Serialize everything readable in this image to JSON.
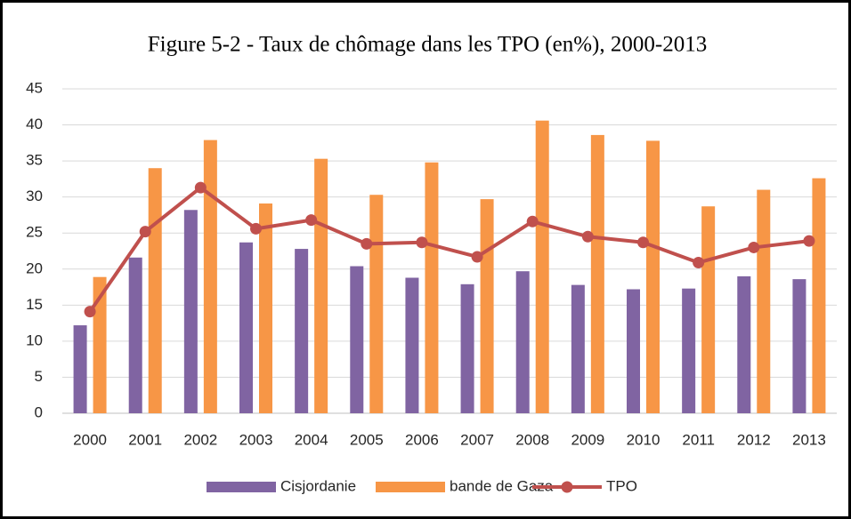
{
  "chart_data": {
    "type": "bar",
    "title": "Figure 5-2 - Taux de chômage dans les TPO (en%), 2000-2013",
    "categories": [
      "2000",
      "2001",
      "2002",
      "2003",
      "2004",
      "2005",
      "2006",
      "2007",
      "2008",
      "2009",
      "2010",
      "2011",
      "2012",
      "2013"
    ],
    "series": [
      {
        "name": "Cisjordanie",
        "type": "bar",
        "color": "#8064a2",
        "values": [
          12.2,
          21.6,
          28.2,
          23.7,
          22.8,
          20.4,
          18.8,
          17.9,
          19.7,
          17.8,
          17.2,
          17.3,
          19.0,
          18.6
        ]
      },
      {
        "name": "bande de Gaza",
        "type": "bar",
        "color": "#f79646",
        "values": [
          18.9,
          34.0,
          37.9,
          29.1,
          35.3,
          30.3,
          34.8,
          29.7,
          40.6,
          38.6,
          37.8,
          28.7,
          31.0,
          32.6
        ]
      },
      {
        "name": "TPO",
        "type": "line",
        "color": "#c0504d",
        "values": [
          14.1,
          25.2,
          31.3,
          25.6,
          26.8,
          23.5,
          23.7,
          21.7,
          26.6,
          24.5,
          23.7,
          20.9,
          23.0,
          23.9
        ]
      }
    ],
    "ylim": [
      0,
      45
    ],
    "yticks": [
      0,
      5,
      10,
      15,
      20,
      25,
      30,
      35,
      40,
      45
    ],
    "grid": true,
    "legend": "bottom"
  }
}
